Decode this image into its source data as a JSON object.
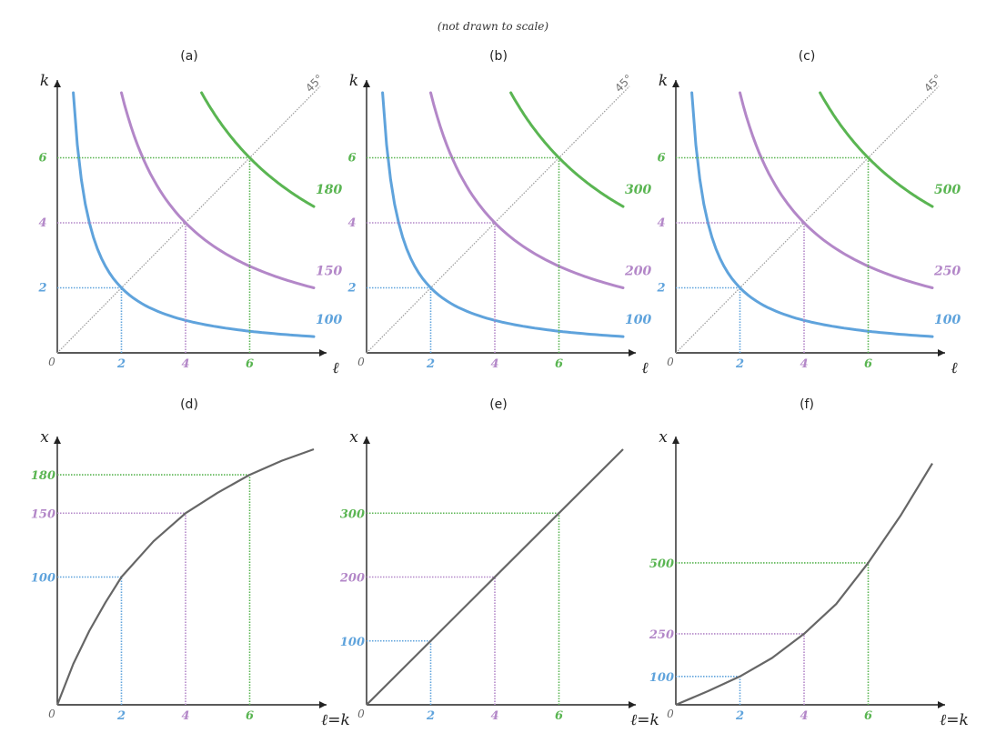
{
  "note": "(not drawn to scale)",
  "colors": {
    "blue": "#5fa3dc",
    "purple": "#b387c8",
    "green": "#5ab552",
    "grey": "#666666"
  },
  "chart_data": [
    {
      "panel": "(a)",
      "type": "line",
      "xlabel": "ℓ",
      "ylabel": "k",
      "origin": "0",
      "diagonal_label": "45°",
      "x_ticks": [
        2,
        4,
        6
      ],
      "y_ticks": [
        2,
        4,
        6
      ],
      "xlim": [
        0,
        8
      ],
      "ylim": [
        0,
        8
      ],
      "series": [
        {
          "name": "100",
          "color": "blue",
          "k_l_product": 4
        },
        {
          "name": "150",
          "color": "purple",
          "k_l_product": 16
        },
        {
          "name": "180",
          "color": "green",
          "k_l_product": 36
        }
      ]
    },
    {
      "panel": "(b)",
      "type": "line",
      "xlabel": "ℓ",
      "ylabel": "k",
      "origin": "0",
      "diagonal_label": "45°",
      "x_ticks": [
        2,
        4,
        6
      ],
      "y_ticks": [
        2,
        4,
        6
      ],
      "xlim": [
        0,
        8
      ],
      "ylim": [
        0,
        8
      ],
      "series": [
        {
          "name": "100",
          "color": "blue",
          "k_l_product": 4
        },
        {
          "name": "200",
          "color": "purple",
          "k_l_product": 16
        },
        {
          "name": "300",
          "color": "green",
          "k_l_product": 36
        }
      ]
    },
    {
      "panel": "(c)",
      "type": "line",
      "xlabel": "ℓ",
      "ylabel": "k",
      "origin": "0",
      "diagonal_label": "45°",
      "x_ticks": [
        2,
        4,
        6
      ],
      "y_ticks": [
        2,
        4,
        6
      ],
      "xlim": [
        0,
        8
      ],
      "ylim": [
        0,
        8
      ],
      "series": [
        {
          "name": "100",
          "color": "blue",
          "k_l_product": 4
        },
        {
          "name": "250",
          "color": "purple",
          "k_l_product": 16
        },
        {
          "name": "500",
          "color": "green",
          "k_l_product": 36
        }
      ]
    },
    {
      "panel": "(d)",
      "type": "line",
      "xlabel": "ℓ=k",
      "ylabel": "x",
      "origin": "0",
      "x_ticks": [
        2,
        4,
        6
      ],
      "y_ticks": [
        100,
        150,
        180
      ],
      "xlim": [
        0,
        8
      ],
      "ylim": [
        0,
        200
      ],
      "points": [
        {
          "x": 2,
          "y": 100,
          "color": "blue"
        },
        {
          "x": 4,
          "y": 150,
          "color": "purple"
        },
        {
          "x": 6,
          "y": 180,
          "color": "green"
        }
      ],
      "curve": {
        "x": [
          0,
          0.5,
          1,
          1.5,
          2,
          3,
          4,
          5,
          6,
          7,
          8
        ],
        "y": [
          0,
          32,
          58,
          80,
          100,
          128,
          150,
          166,
          180,
          191,
          200
        ]
      }
    },
    {
      "panel": "(e)",
      "type": "line",
      "xlabel": "ℓ=k",
      "ylabel": "x",
      "origin": "0",
      "x_ticks": [
        2,
        4,
        6
      ],
      "y_ticks": [
        100,
        200,
        300
      ],
      "xlim": [
        0,
        8
      ],
      "ylim": [
        0,
        400
      ],
      "points": [
        {
          "x": 2,
          "y": 100,
          "color": "blue"
        },
        {
          "x": 4,
          "y": 200,
          "color": "purple"
        },
        {
          "x": 6,
          "y": 300,
          "color": "green"
        }
      ],
      "curve": {
        "x": [
          0,
          8
        ],
        "y": [
          0,
          400
        ]
      }
    },
    {
      "panel": "(f)",
      "type": "line",
      "xlabel": "ℓ=k",
      "ylabel": "x",
      "origin": "0",
      "x_ticks": [
        2,
        4,
        6
      ],
      "y_ticks": [
        100,
        250,
        500
      ],
      "xlim": [
        0,
        8
      ],
      "ylim": [
        0,
        900
      ],
      "points": [
        {
          "x": 2,
          "y": 100,
          "color": "blue"
        },
        {
          "x": 4,
          "y": 250,
          "color": "purple"
        },
        {
          "x": 6,
          "y": 500,
          "color": "green"
        }
      ],
      "curve": {
        "x": [
          0,
          1,
          2,
          3,
          4,
          5,
          6,
          7,
          8
        ],
        "y": [
          0,
          48,
          100,
          165,
          250,
          355,
          500,
          665,
          850
        ]
      }
    }
  ]
}
